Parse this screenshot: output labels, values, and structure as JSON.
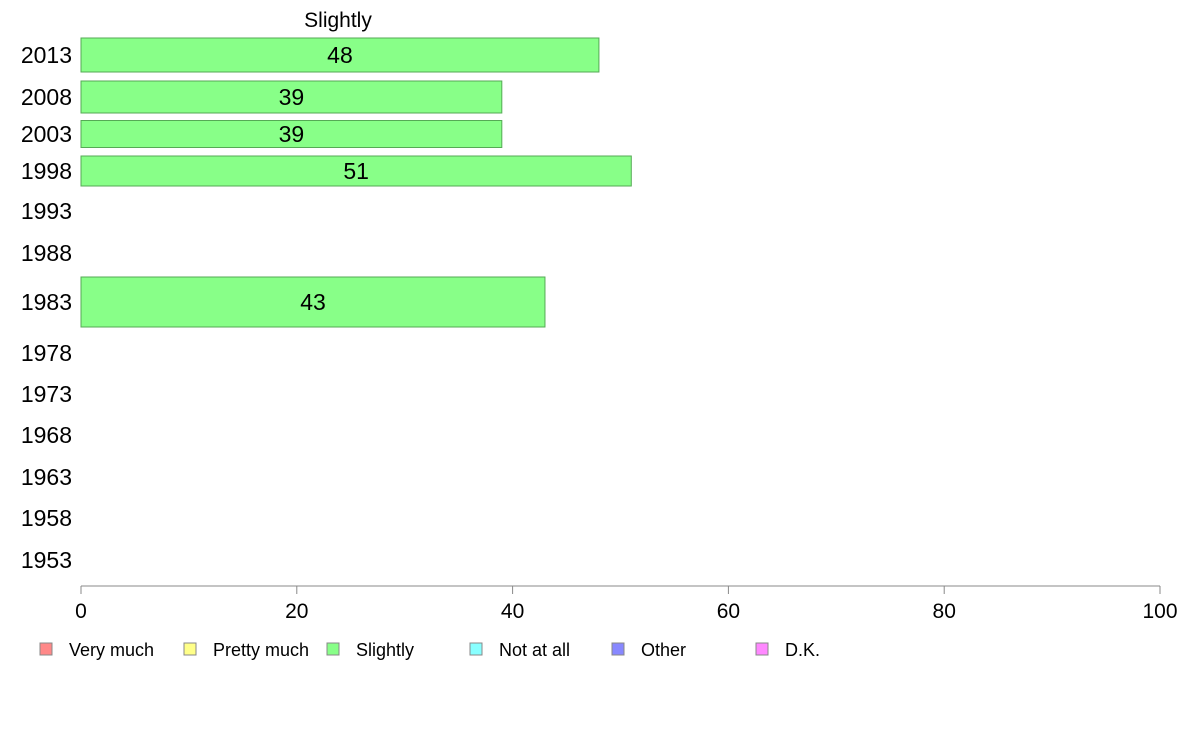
{
  "chart_data": {
    "type": "bar",
    "orientation": "horizontal",
    "title": "Slightly",
    "xlabel": "",
    "ylabel": "",
    "xlim": [
      0,
      100
    ],
    "x_ticks": [
      "0",
      "20",
      "40",
      "60",
      "80",
      "100"
    ],
    "categories": [
      "2013",
      "2008",
      "2003",
      "1998",
      "1993",
      "1988",
      "1983",
      "1978",
      "1973",
      "1968",
      "1963",
      "1958",
      "1953"
    ],
    "series": [
      {
        "name": "Slightly",
        "color": "#88ff88",
        "values": [
          48,
          39,
          39,
          51,
          null,
          null,
          43,
          null,
          null,
          null,
          null,
          null,
          null
        ],
        "labels": [
          "48",
          "39",
          "39",
          "51",
          "",
          "",
          "43",
          "",
          "",
          "",
          "",
          "",
          ""
        ]
      }
    ],
    "legend": {
      "placement": "bottom",
      "entries": [
        {
          "label": "Very much",
          "color": "#ff8888"
        },
        {
          "label": "Pretty much",
          "color": "#ffff88"
        },
        {
          "label": "Slightly",
          "color": "#88ff88"
        },
        {
          "label": "Not at all",
          "color": "#88ffff"
        },
        {
          "label": "Other",
          "color": "#8888ff"
        },
        {
          "label": "D.K.",
          "color": "#ff88ff"
        }
      ]
    },
    "grid": false
  }
}
